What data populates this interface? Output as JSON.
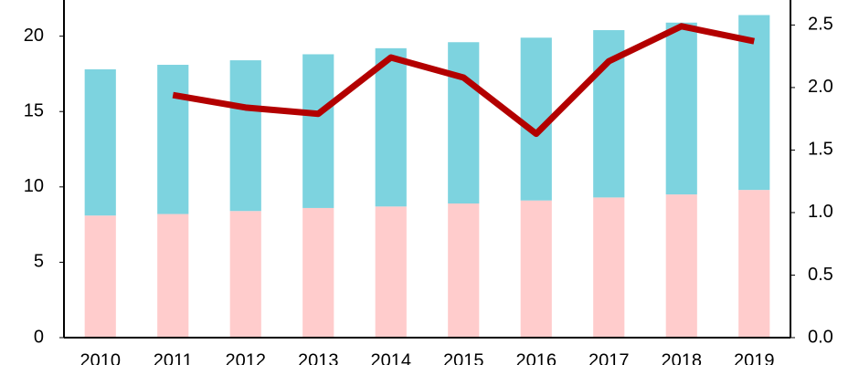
{
  "chart_data": {
    "type": "bar-line",
    "categories": [
      "2010",
      "2011",
      "2012",
      "2013",
      "2014",
      "2015",
      "2016",
      "2017",
      "2018",
      "2019"
    ],
    "series": [
      {
        "color": "#ffcccc",
        "stack": true,
        "values": [
          8.1,
          8.2,
          8.4,
          8.6,
          8.7,
          8.9,
          9.1,
          9.3,
          9.5,
          9.8
        ]
      },
      {
        "color": "#7dd3df",
        "stack": true,
        "values": [
          9.7,
          9.9,
          10.0,
          10.2,
          10.5,
          10.7,
          10.8,
          11.1,
          11.4,
          11.6
        ]
      },
      {
        "color": "#b30000",
        "axis": "y2",
        "line": true,
        "values": [
          null,
          1.94,
          1.84,
          1.79,
          2.24,
          2.08,
          1.63,
          2.21,
          2.49,
          2.37
        ]
      }
    ],
    "ylim": [
      0,
      22.4
    ],
    "yticks": [
      0,
      5,
      10,
      15,
      20
    ],
    "y2lim": [
      0,
      2.7
    ],
    "y2ticks": [
      {
        "value": 0,
        "label": "0.0"
      },
      {
        "value": 0.5,
        "label": "0.5"
      },
      {
        "value": 1,
        "label": "1.0"
      },
      {
        "value": 1.5,
        "label": "1.5"
      },
      {
        "value": 2,
        "label": "2.0"
      },
      {
        "value": 2.5,
        "label": "2.5"
      }
    ],
    "grid": false
  }
}
